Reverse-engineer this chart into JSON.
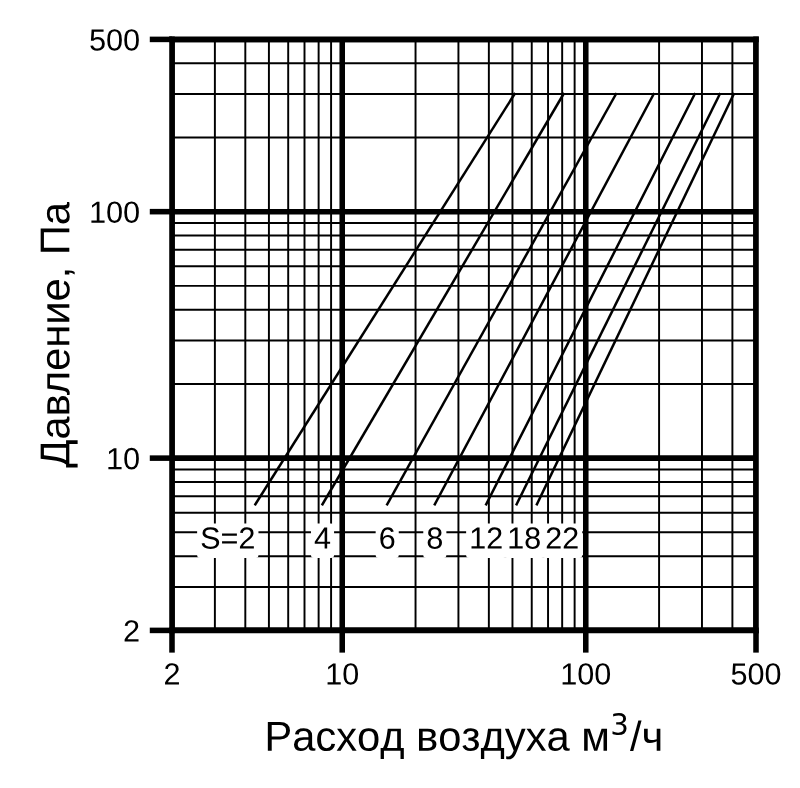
{
  "chart_data": {
    "type": "line",
    "xlabel": "Расход воздуха м$^{3}$/ч",
    "ylabel": "Давление, Па",
    "log": "xy",
    "xlim": [
      2,
      500
    ],
    "ylim": [
      2,
      500
    ],
    "xticks": [
      2,
      10,
      100,
      500
    ],
    "yticks": [
      2,
      10,
      100,
      500
    ],
    "grid": true,
    "marker": "none",
    "line_style": "solid",
    "series": [
      {
        "name": "S=2",
        "color": "#000000",
        "x": [
          4.4,
          51
        ],
        "values": [
          6.5,
          300
        ]
      },
      {
        "name": "4",
        "color": "#000000",
        "x": [
          8.3,
          81
        ],
        "values": [
          6.5,
          300
        ]
      },
      {
        "name": "6",
        "color": "#000000",
        "x": [
          15.3,
          133
        ],
        "values": [
          6.5,
          300
        ]
      },
      {
        "name": "8",
        "color": "#000000",
        "x": [
          24,
          190
        ],
        "values": [
          6.5,
          300
        ]
      },
      {
        "name": "12",
        "color": "#000000",
        "x": [
          39,
          280
        ],
        "values": [
          6.5,
          300
        ]
      },
      {
        "name": "18",
        "color": "#000000",
        "x": [
          52,
          355
        ],
        "values": [
          6.5,
          300
        ]
      },
      {
        "name": "22",
        "color": "#000000",
        "x": [
          63,
          405
        ],
        "values": [
          6.5,
          300
        ]
      }
    ]
  }
}
